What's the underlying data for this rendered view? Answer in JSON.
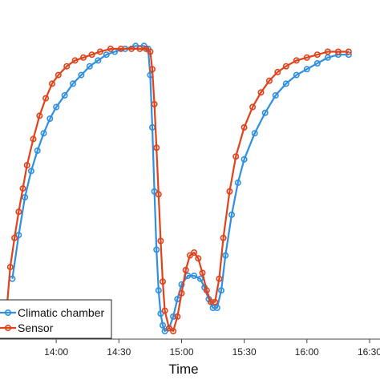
{
  "chart_data": {
    "type": "line",
    "title": "",
    "xlabel": "Time",
    "ylabel": "",
    "x_unit": "clock time (HH:MM)",
    "xlim": [
      "13:30",
      "16:35"
    ],
    "ylim": [
      0,
      1
    ],
    "x_ticks": [
      "14:00",
      "14:30",
      "15:00",
      "15:30",
      "16:00",
      "16:30"
    ],
    "grid": false,
    "legend_position": "bottom-left",
    "series": [
      {
        "name": "Climatic chamber",
        "color": "#2f8fe0",
        "marker": "circle",
        "points": [
          [
            "13:39",
            0.18
          ],
          [
            "13:42",
            0.33
          ],
          [
            "13:45",
            0.46
          ],
          [
            "13:48",
            0.55
          ],
          [
            "13:51",
            0.62
          ],
          [
            "13:54",
            0.68
          ],
          [
            "13:57",
            0.73
          ],
          [
            "14:00",
            0.77
          ],
          [
            "14:04",
            0.81
          ],
          [
            "14:08",
            0.85
          ],
          [
            "14:12",
            0.88
          ],
          [
            "14:16",
            0.91
          ],
          [
            "14:20",
            0.93
          ],
          [
            "14:24",
            0.95
          ],
          [
            "14:28",
            0.96
          ],
          [
            "14:33",
            0.97
          ],
          [
            "14:38",
            0.98
          ],
          [
            "14:42",
            0.98
          ],
          [
            "14:44",
            0.97
          ],
          [
            "14:45",
            0.88
          ],
          [
            "14:46",
            0.7
          ],
          [
            "14:47",
            0.48
          ],
          [
            "14:48",
            0.28
          ],
          [
            "14:49",
            0.14
          ],
          [
            "14:50",
            0.06
          ],
          [
            "14:51",
            0.02
          ],
          [
            "14:52",
            0.0
          ],
          [
            "14:54",
            0.01
          ],
          [
            "14:56",
            0.05
          ],
          [
            "14:58",
            0.11
          ],
          [
            "15:00",
            0.16
          ],
          [
            "15:03",
            0.19
          ],
          [
            "15:06",
            0.19
          ],
          [
            "15:09",
            0.18
          ],
          [
            "15:11",
            0.15
          ],
          [
            "15:13",
            0.11
          ],
          [
            "15:15",
            0.08
          ],
          [
            "15:17",
            0.08
          ],
          [
            "15:19",
            0.14
          ],
          [
            "15:21",
            0.26
          ],
          [
            "15:24",
            0.4
          ],
          [
            "15:27",
            0.51
          ],
          [
            "15:30",
            0.59
          ],
          [
            "15:35",
            0.68
          ],
          [
            "15:40",
            0.75
          ],
          [
            "15:45",
            0.81
          ],
          [
            "15:50",
            0.85
          ],
          [
            "15:55",
            0.88
          ],
          [
            "16:00",
            0.9
          ],
          [
            "16:05",
            0.92
          ],
          [
            "16:10",
            0.94
          ],
          [
            "16:15",
            0.95
          ],
          [
            "16:20",
            0.95
          ]
        ]
      },
      {
        "name": "Sensor",
        "color": "#e0421a",
        "marker": "circle",
        "points": [
          [
            "13:36",
            0.05
          ],
          [
            "13:38",
            0.22
          ],
          [
            "13:40",
            0.32
          ],
          [
            "13:42",
            0.41
          ],
          [
            "13:44",
            0.49
          ],
          [
            "13:46",
            0.57
          ],
          [
            "13:49",
            0.66
          ],
          [
            "13:52",
            0.74
          ],
          [
            "13:55",
            0.8
          ],
          [
            "13:58",
            0.85
          ],
          [
            "14:01",
            0.88
          ],
          [
            "14:05",
            0.91
          ],
          [
            "14:09",
            0.93
          ],
          [
            "14:13",
            0.94
          ],
          [
            "14:17",
            0.95
          ],
          [
            "14:21",
            0.96
          ],
          [
            "14:26",
            0.97
          ],
          [
            "14:31",
            0.97
          ],
          [
            "14:36",
            0.97
          ],
          [
            "14:40",
            0.97
          ],
          [
            "14:43",
            0.97
          ],
          [
            "14:45",
            0.96
          ],
          [
            "14:46",
            0.9
          ],
          [
            "14:47",
            0.78
          ],
          [
            "14:48",
            0.63
          ],
          [
            "14:49",
            0.47
          ],
          [
            "14:50",
            0.31
          ],
          [
            "14:51",
            0.17
          ],
          [
            "14:52",
            0.07
          ],
          [
            "14:54",
            0.01
          ],
          [
            "14:56",
            0.0
          ],
          [
            "14:58",
            0.05
          ],
          [
            "15:00",
            0.13
          ],
          [
            "15:02",
            0.21
          ],
          [
            "15:04",
            0.26
          ],
          [
            "15:06",
            0.27
          ],
          [
            "15:08",
            0.25
          ],
          [
            "15:10",
            0.2
          ],
          [
            "15:12",
            0.14
          ],
          [
            "15:14",
            0.1
          ],
          [
            "15:16",
            0.1
          ],
          [
            "15:18",
            0.18
          ],
          [
            "15:20",
            0.32
          ],
          [
            "15:23",
            0.48
          ],
          [
            "15:26",
            0.6
          ],
          [
            "15:30",
            0.7
          ],
          [
            "15:34",
            0.77
          ],
          [
            "15:38",
            0.82
          ],
          [
            "15:42",
            0.86
          ],
          [
            "15:46",
            0.89
          ],
          [
            "15:50",
            0.91
          ],
          [
            "15:55",
            0.93
          ],
          [
            "16:00",
            0.94
          ],
          [
            "16:05",
            0.95
          ],
          [
            "16:10",
            0.96
          ],
          [
            "16:15",
            0.96
          ],
          [
            "16:20",
            0.96
          ]
        ]
      }
    ],
    "legend": [
      "Climatic chamber",
      "Sensor"
    ]
  }
}
